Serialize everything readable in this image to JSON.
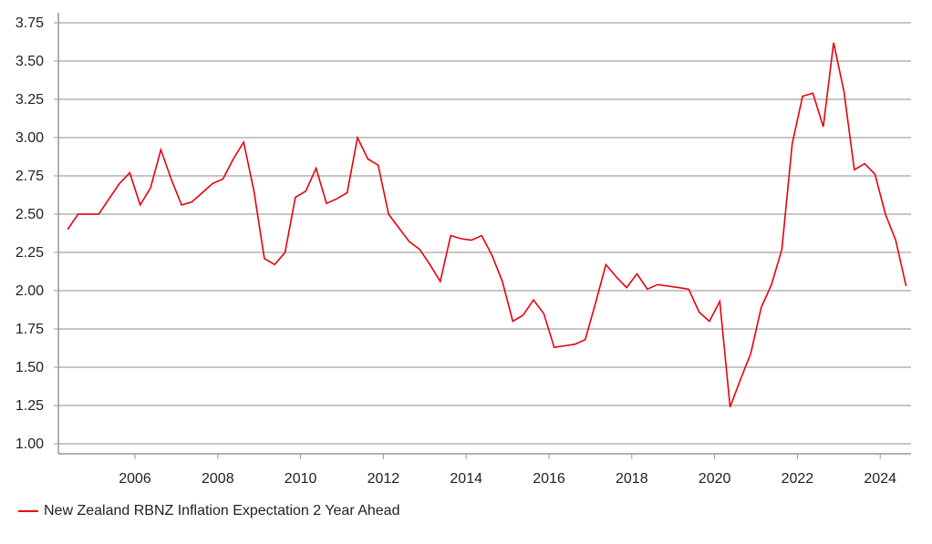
{
  "chart_data": {
    "type": "line",
    "title": "",
    "xlabel": "",
    "ylabel": "",
    "ylim": [
      1.0,
      3.75
    ],
    "xlim": [
      2004.3,
      2024.8
    ],
    "yticks": [
      "1.00",
      "1.25",
      "1.50",
      "1.75",
      "2.00",
      "2.25",
      "2.50",
      "2.75",
      "3.00",
      "3.25",
      "3.50",
      "3.75"
    ],
    "xticks": [
      "2006",
      "2008",
      "2010",
      "2012",
      "2014",
      "2016",
      "2018",
      "2020",
      "2022",
      "2024"
    ],
    "grid": true,
    "legend_position": "bottom-left",
    "series": [
      {
        "name": "New Zealand RBNZ Inflation Expectation 2 Year Ahead",
        "color": "#e8000b",
        "x_start": 2004.375,
        "x_step": 0.25,
        "values": [
          2.4,
          2.5,
          2.5,
          2.5,
          2.6,
          2.7,
          2.77,
          2.56,
          2.67,
          2.92,
          2.73,
          2.56,
          2.58,
          2.64,
          2.7,
          2.73,
          2.86,
          2.97,
          2.65,
          2.21,
          2.17,
          2.25,
          2.61,
          2.65,
          2.8,
          2.57,
          2.6,
          2.64,
          3.0,
          2.86,
          2.82,
          2.5,
          2.41,
          2.32,
          2.27,
          2.17,
          2.06,
          2.36,
          2.34,
          2.33,
          2.36,
          2.23,
          2.06,
          1.8,
          1.84,
          1.94,
          1.85,
          1.63,
          1.64,
          1.65,
          1.68,
          1.92,
          2.17,
          2.09,
          2.02,
          2.11,
          2.01,
          2.04,
          2.03,
          2.02,
          2.01,
          1.86,
          1.8,
          1.93,
          1.24,
          1.42,
          1.59,
          1.89,
          2.04,
          2.27,
          2.96,
          3.27,
          3.29,
          3.07,
          3.62,
          3.3,
          2.79,
          2.83,
          2.76,
          2.5,
          2.33,
          2.03
        ]
      }
    ]
  }
}
